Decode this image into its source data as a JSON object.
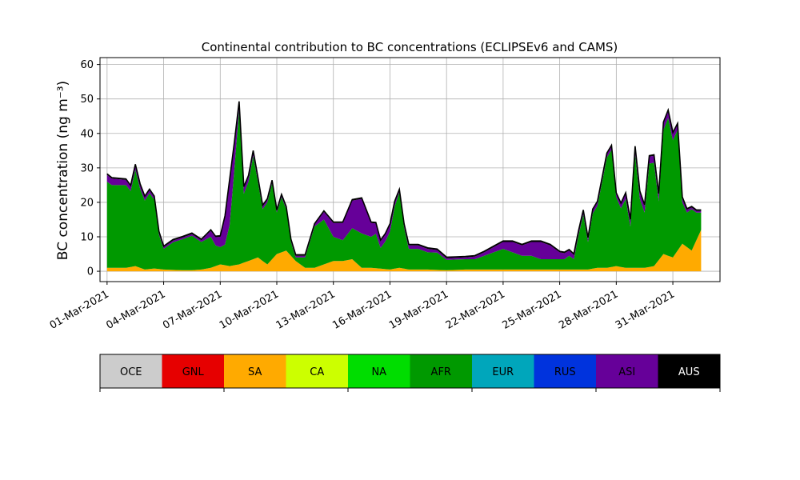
{
  "chart_data": {
    "type": "area",
    "stacked": true,
    "title": "Continental contribution to BC concentrations (ECLIPSEv6 and CAMS)",
    "xlabel": "",
    "ylabel": "BC concentration (ng m⁻³)",
    "ylim": [
      -3,
      62
    ],
    "xlim": [
      "2021-02-28T15:00",
      "2021-04-02T12:00"
    ],
    "yticks": [
      0,
      10,
      20,
      30,
      40,
      50,
      60
    ],
    "xticks": [
      "2021-03-01",
      "2021-03-04",
      "2021-03-07",
      "2021-03-10",
      "2021-03-13",
      "2021-03-16",
      "2021-03-19",
      "2021-03-22",
      "2021-03-25",
      "2021-03-28",
      "2021-03-31"
    ],
    "xtick_labels": [
      "01-Mar-2021",
      "04-Mar-2021",
      "07-Mar-2021",
      "10-Mar-2021",
      "13-Mar-2021",
      "16-Mar-2021",
      "19-Mar-2021",
      "22-Mar-2021",
      "25-Mar-2021",
      "28-Mar-2021",
      "31-Mar-2021"
    ],
    "grid": true,
    "regions": [
      {
        "name": "OCE",
        "color": "#cccccc"
      },
      {
        "name": "GNL",
        "color": "#e60000"
      },
      {
        "name": "SA",
        "color": "#ffaa00"
      },
      {
        "name": "CA",
        "color": "#ccff00"
      },
      {
        "name": "NA",
        "color": "#00dd00"
      },
      {
        "name": "AFR",
        "color": "#009900"
      },
      {
        "name": "EUR",
        "color": "#00a6bb"
      },
      {
        "name": "RUS",
        "color": "#0033dd"
      },
      {
        "name": "ASI",
        "color": "#660099"
      },
      {
        "name": "AUS",
        "color": "#000000"
      }
    ],
    "series": [
      {
        "name": "SA",
        "x": [
          "2021-03-01T00:00",
          "2021-03-01T12:00",
          "2021-03-02T00:00",
          "2021-03-02T12:00",
          "2021-03-03T00:00",
          "2021-03-03T12:00",
          "2021-03-04T00:00",
          "2021-03-05T00:00",
          "2021-03-05T12:00",
          "2021-03-06T00:00",
          "2021-03-06T12:00",
          "2021-03-07T00:00",
          "2021-03-07T12:00",
          "2021-03-08T00:00",
          "2021-03-08T12:00",
          "2021-03-09T00:00",
          "2021-03-09T12:00",
          "2021-03-10T00:00",
          "2021-03-10T12:00",
          "2021-03-11T00:00",
          "2021-03-11T12:00",
          "2021-03-12T00:00",
          "2021-03-12T12:00",
          "2021-03-13T00:00",
          "2021-03-13T12:00",
          "2021-03-14T00:00",
          "2021-03-14T12:00",
          "2021-03-15T00:00",
          "2021-03-16T00:00",
          "2021-03-16T12:00",
          "2021-03-17T00:00",
          "2021-03-18T00:00",
          "2021-03-19T00:00",
          "2021-03-20T00:00",
          "2021-03-21T00:00",
          "2021-03-22T00:00",
          "2021-03-23T00:00",
          "2021-03-24T00:00",
          "2021-03-25T00:00",
          "2021-03-25T12:00",
          "2021-03-26T00:00",
          "2021-03-26T12:00",
          "2021-03-27T00:00",
          "2021-03-27T12:00",
          "2021-03-28T00:00",
          "2021-03-28T12:00",
          "2021-03-29T00:00",
          "2021-03-29T12:00",
          "2021-03-30T00:00",
          "2021-03-30T12:00",
          "2021-03-31T00:00",
          "2021-03-31T12:00",
          "2021-04-01T00:00",
          "2021-04-01T12:00"
        ],
        "values": [
          1,
          1,
          1,
          1.5,
          0.5,
          0.8,
          0.5,
          0.3,
          0.3,
          0.5,
          1,
          2,
          1.5,
          2,
          3,
          4,
          2,
          5,
          6,
          3,
          1,
          1,
          2,
          3,
          3,
          3.5,
          1,
          1,
          0.5,
          1,
          0.5,
          0.5,
          0.3,
          0.5,
          0.5,
          0.5,
          0.5,
          0.5,
          0.5,
          0.5,
          0.5,
          0.5,
          1,
          1,
          1.5,
          1,
          1,
          1,
          1.5,
          5,
          4,
          8,
          6,
          12
        ]
      },
      {
        "name": "AFR",
        "x": [
          "2021-03-01T00:00",
          "2021-03-01T06:00",
          "2021-03-01T12:00",
          "2021-03-02T00:00",
          "2021-03-02T06:00",
          "2021-03-02T12:00",
          "2021-03-02T18:00",
          "2021-03-03T00:00",
          "2021-03-03T06:00",
          "2021-03-03T12:00",
          "2021-03-03T18:00",
          "2021-03-04T00:00",
          "2021-03-04T12:00",
          "2021-03-05T00:00",
          "2021-03-05T12:00",
          "2021-03-06T00:00",
          "2021-03-06T12:00",
          "2021-03-06T18:00",
          "2021-03-07T00:00",
          "2021-03-07T06:00",
          "2021-03-07T12:00",
          "2021-03-07T18:00",
          "2021-03-08T00:00",
          "2021-03-08T06:00",
          "2021-03-08T12:00",
          "2021-03-08T18:00",
          "2021-03-09T00:00",
          "2021-03-09T06:00",
          "2021-03-09T12:00",
          "2021-03-09T18:00",
          "2021-03-10T00:00",
          "2021-03-10T06:00",
          "2021-03-10T12:00",
          "2021-03-10T18:00",
          "2021-03-11T00:00",
          "2021-03-11T12:00",
          "2021-03-12T00:00",
          "2021-03-12T12:00",
          "2021-03-13T00:00",
          "2021-03-13T12:00",
          "2021-03-14T00:00",
          "2021-03-14T12:00",
          "2021-03-15T00:00",
          "2021-03-15T06:00",
          "2021-03-15T12:00",
          "2021-03-15T18:00",
          "2021-03-16T00:00",
          "2021-03-16T06:00",
          "2021-03-16T12:00",
          "2021-03-16T18:00",
          "2021-03-17T00:00",
          "2021-03-17T12:00",
          "2021-03-18T00:00",
          "2021-03-18T12:00",
          "2021-03-19T00:00",
          "2021-03-19T12:00",
          "2021-03-20T00:00",
          "2021-03-20T12:00",
          "2021-03-21T00:00",
          "2021-03-21T12:00",
          "2021-03-22T00:00",
          "2021-03-22T12:00",
          "2021-03-23T00:00",
          "2021-03-23T12:00",
          "2021-03-24T00:00",
          "2021-03-24T12:00",
          "2021-03-25T00:00",
          "2021-03-25T06:00",
          "2021-03-25T12:00",
          "2021-03-25T18:00",
          "2021-03-26T00:00",
          "2021-03-26T06:00",
          "2021-03-26T12:00",
          "2021-03-26T18:00",
          "2021-03-27T00:00",
          "2021-03-27T06:00",
          "2021-03-27T12:00",
          "2021-03-27T18:00",
          "2021-03-28T00:00",
          "2021-03-28T06:00",
          "2021-03-28T12:00",
          "2021-03-28T18:00",
          "2021-03-29T00:00",
          "2021-03-29T06:00",
          "2021-03-29T12:00",
          "2021-03-29T18:00",
          "2021-03-30T00:00",
          "2021-03-30T06:00",
          "2021-03-30T12:00",
          "2021-03-30T18:00",
          "2021-03-31T00:00",
          "2021-03-31T06:00",
          "2021-03-31T12:00",
          "2021-03-31T18:00",
          "2021-04-01T00:00",
          "2021-04-01T06:00",
          "2021-04-01T12:00"
        ],
        "values": [
          25,
          24,
          24,
          24,
          22,
          28,
          23,
          20,
          22,
          20,
          10,
          6,
          8,
          9,
          10,
          8,
          9,
          6,
          5,
          6,
          12,
          28,
          45,
          20,
          23,
          30,
          22,
          15,
          18,
          22,
          12,
          16,
          12,
          4,
          1,
          3,
          12,
          13,
          7,
          6,
          9,
          10,
          9,
          10,
          6,
          8,
          11,
          18,
          22,
          12,
          6,
          6,
          5,
          5,
          3,
          3,
          3,
          3,
          4,
          5,
          6,
          5,
          4,
          4,
          3,
          3,
          3,
          3,
          4,
          3,
          10,
          16,
          8,
          16,
          18,
          25,
          32,
          34,
          20,
          17,
          20,
          12,
          33,
          20,
          16,
          30,
          30,
          17,
          36,
          40,
          34,
          35,
          12,
          10,
          12,
          8,
          5
        ]
      },
      {
        "name": "ASI",
        "x": [
          "2021-03-01T00:00",
          "2021-03-02T00:00",
          "2021-03-03T00:00",
          "2021-03-04T00:00",
          "2021-03-05T00:00",
          "2021-03-06T00:00",
          "2021-03-07T00:00",
          "2021-03-07T12:00",
          "2021-03-08T00:00",
          "2021-03-09T00:00",
          "2021-03-10T00:00",
          "2021-03-11T00:00",
          "2021-03-12T00:00",
          "2021-03-13T00:00",
          "2021-03-13T12:00",
          "2021-03-14T00:00",
          "2021-03-14T12:00",
          "2021-03-15T00:00",
          "2021-03-15T12:00",
          "2021-03-16T00:00",
          "2021-03-16T12:00",
          "2021-03-17T00:00",
          "2021-03-18T00:00",
          "2021-03-19T00:00",
          "2021-03-20T00:00",
          "2021-03-21T00:00",
          "2021-03-22T00:00",
          "2021-03-22T12:00",
          "2021-03-23T00:00",
          "2021-03-23T12:00",
          "2021-03-24T00:00",
          "2021-03-24T12:00",
          "2021-03-25T00:00",
          "2021-03-26T00:00",
          "2021-03-27T00:00",
          "2021-03-28T00:00",
          "2021-03-29T00:00",
          "2021-03-30T00:00",
          "2021-03-31T00:00",
          "2021-04-01T00:00"
        ],
        "values": [
          2,
          1.5,
          1,
          0.5,
          0.5,
          0.5,
          3,
          13,
          2,
          1,
          0.5,
          0.5,
          0.5,
          4,
          5,
          8,
          10,
          4,
          2,
          2,
          0.5,
          1,
          1,
          0.5,
          0.5,
          1,
          2,
          3,
          3,
          4,
          5,
          4,
          2,
          1,
          1,
          1,
          2,
          2,
          2,
          0.5
        ]
      },
      {
        "name": "AUS",
        "x": [
          "2021-03-01T00:00",
          "2021-04-01T12:00"
        ],
        "values": [
          0.3,
          0.3
        ]
      }
    ]
  },
  "colorbar": {
    "labels": [
      "OCE",
      "GNL",
      "SA",
      "CA",
      "NA",
      "AFR",
      "EUR",
      "RUS",
      "ASI",
      "AUS"
    ],
    "colors": [
      "#cccccc",
      "#e60000",
      "#ffaa00",
      "#ccff00",
      "#00dd00",
      "#009900",
      "#00a6bb",
      "#0033dd",
      "#660099",
      "#000000"
    ],
    "label_colors": [
      "#000000",
      "#000000",
      "#000000",
      "#000000",
      "#000000",
      "#000000",
      "#000000",
      "#000000",
      "#000000",
      "#ffffff"
    ]
  }
}
